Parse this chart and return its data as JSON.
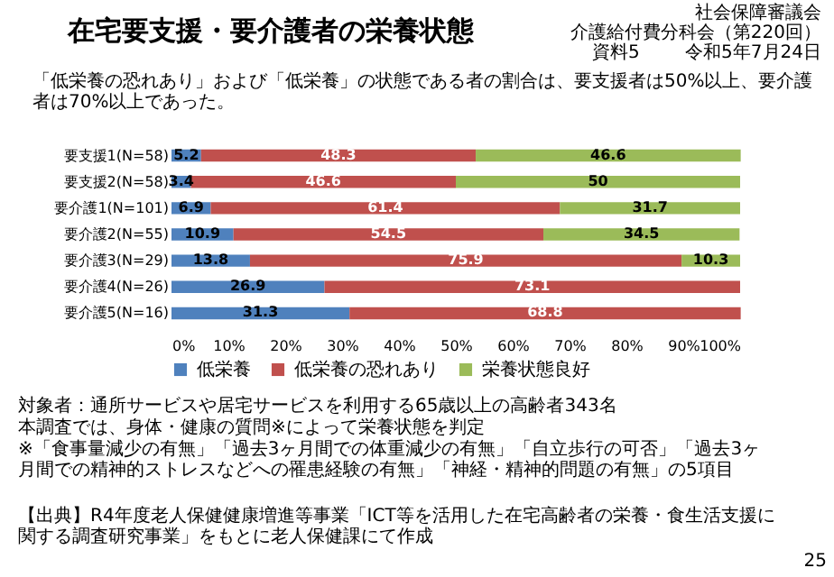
{
  "chart_data": {
    "type": "bar",
    "orientation": "horizontal",
    "stacked": true,
    "title": "在宅要支援・要介護者の栄養状態",
    "categories": [
      "要支援1(N=58)",
      "要支援2(N=58)",
      "要介護1(N=101)",
      "要介護2(N=55)",
      "要介護3(N=29)",
      "要介護4(N=26)",
      "要介護5(N=16)"
    ],
    "series": [
      {
        "name": "低栄養",
        "color": "#4f81bd",
        "values": [
          5.2,
          3.4,
          6.9,
          10.9,
          13.8,
          26.9,
          31.3
        ]
      },
      {
        "name": "低栄養の恐れあり",
        "color": "#c0504d",
        "values": [
          48.3,
          46.6,
          61.4,
          54.5,
          75.9,
          73.1,
          68.8
        ]
      },
      {
        "name": "栄養状態良好",
        "color": "#9bbb59",
        "values": [
          46.6,
          50,
          31.7,
          34.5,
          10.3,
          null,
          null
        ]
      }
    ],
    "xlim": [
      0,
      100
    ],
    "xticks": [
      {
        "value": 0,
        "label": "0%"
      },
      {
        "value": 10,
        "label": "10%"
      },
      {
        "value": 20,
        "label": "20%"
      },
      {
        "value": 30,
        "label": "30%"
      },
      {
        "value": 40,
        "label": "40%"
      },
      {
        "value": 50,
        "label": "50%"
      },
      {
        "value": 60,
        "label": "60%"
      },
      {
        "value": 70,
        "label": "70%"
      },
      {
        "value": 80,
        "label": "80%"
      },
      {
        "value": 90,
        "label": "90%"
      },
      {
        "value": 100,
        "label": "100%"
      }
    ],
    "data_labels": true,
    "grid": false,
    "legend": "bottom",
    "annotations": [
      "社会保障審議会",
      "介護給付費分科会（第220回）",
      "令和5年7月24日",
      "資料5",
      "「低栄養の恐れあり」および「低栄養」の状態である者の割合は、要支援者は50%以上、要介護者は70%以上であった。",
      "対象者：通所サービスや居宅サービスを利用する65歳以上の高齢者343名",
      "本調査では、身体・健康の質問※によって栄養状態を判定",
      "※「食事量減少の有無」「過去3ヶ月間での体重減少の有無」「自立歩行の可否」「過去3ヶ月間での精神的ストレスなどへの罹患経験の有無」「神経・精神的問題の有無」の5項目",
      "【出典】R4年度老人保健健康増進等事業「ICT等を活用した在宅高齢者の栄養・食生活支援に関する調査研究事業」をもとに老人保健課にて作成",
      "25"
    ]
  }
}
